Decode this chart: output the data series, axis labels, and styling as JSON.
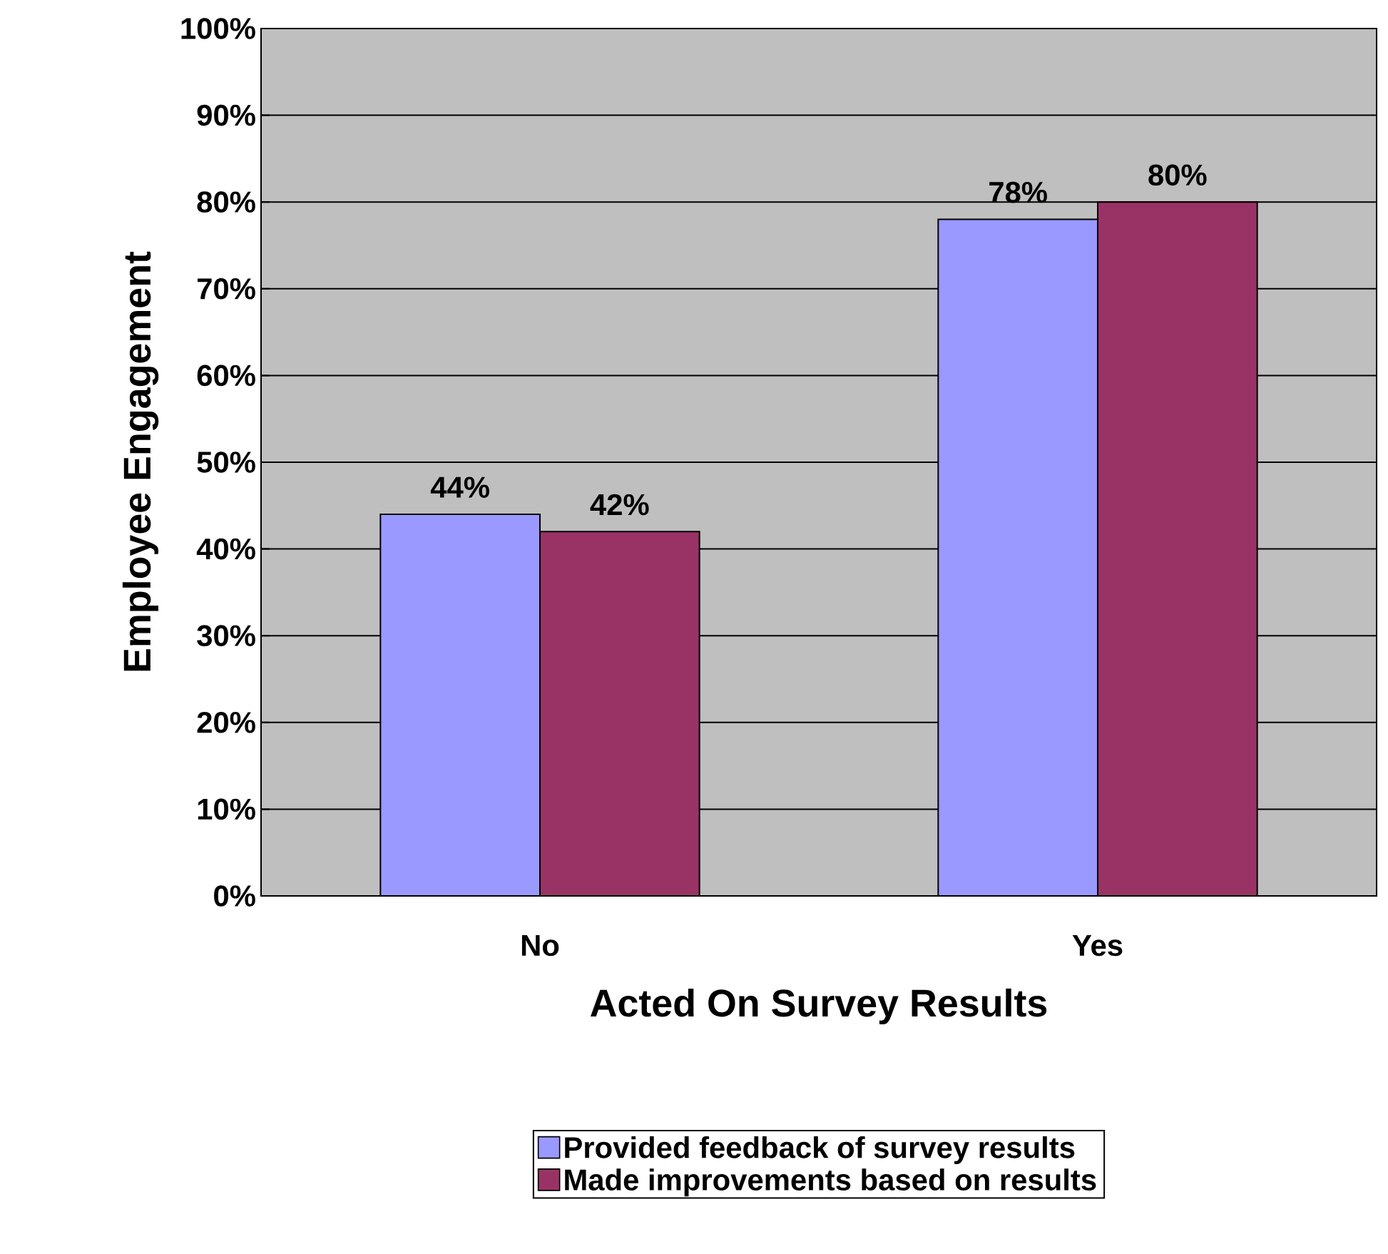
{
  "chart_data": {
    "type": "bar",
    "xlabel": "Acted On Survey Results",
    "ylabel": "Employee Engagement",
    "categories": [
      "No",
      "Yes"
    ],
    "series": [
      {
        "name": "Provided feedback of survey results",
        "color": "#9999ff",
        "values": [
          44,
          78
        ],
        "value_labels": [
          "44%",
          "78%"
        ]
      },
      {
        "name": "Made improvements based on results",
        "color": "#993366",
        "values": [
          42,
          80
        ],
        "value_labels": [
          "42%",
          "80%"
        ]
      }
    ],
    "ylim": [
      0,
      100
    ],
    "yticks": [
      {
        "value": 0,
        "label": "0%"
      },
      {
        "value": 10,
        "label": "10%"
      },
      {
        "value": 20,
        "label": "20%"
      },
      {
        "value": 30,
        "label": "30%"
      },
      {
        "value": 40,
        "label": "40%"
      },
      {
        "value": 50,
        "label": "50%"
      },
      {
        "value": 60,
        "label": "60%"
      },
      {
        "value": 70,
        "label": "70%"
      },
      {
        "value": 80,
        "label": "80%"
      },
      {
        "value": 90,
        "label": "90%"
      },
      {
        "value": 100,
        "label": "100%"
      }
    ],
    "grid": "y",
    "legend": "bottom"
  }
}
